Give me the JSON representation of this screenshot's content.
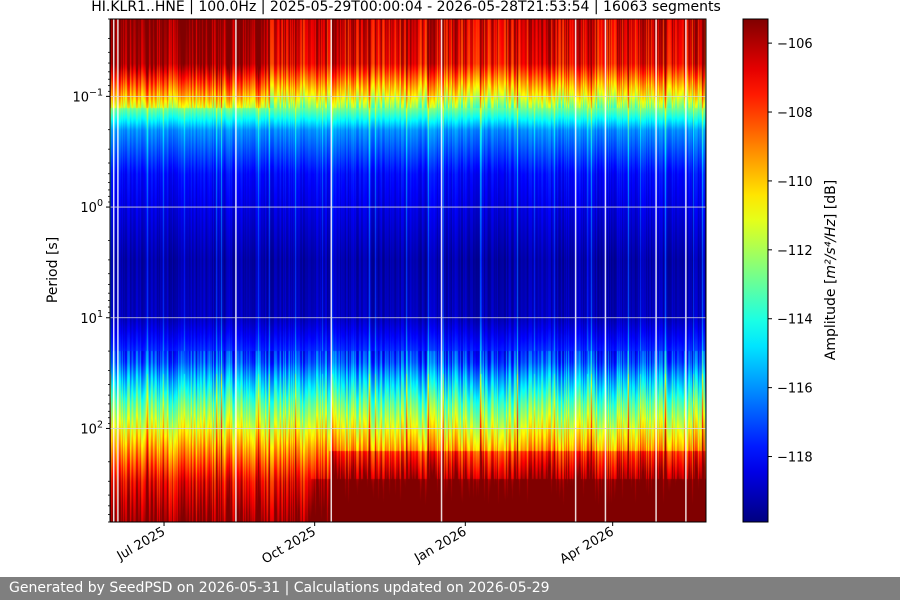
{
  "chart_data": {
    "type": "heatmap",
    "title": "HI.KLR1..HNE | 100.0Hz | 2025-05-29T00:00:04 - 2026-05-28T21:53:54 | 16063 segments",
    "ylabel": "Period [s]",
    "yscale": "log",
    "yaxis_inverted": true,
    "ylim": [
      0.02,
      700
    ],
    "xlim": [
      "2025-05-29",
      "2026-05-28"
    ],
    "x_tick_dates": [
      "2025-07-01",
      "2025-10-01",
      "2026-01-01",
      "2026-04-01"
    ],
    "x_tick_labels": [
      "Jul 2025",
      "Oct 2025",
      "Jan 2026",
      "Apr 2026"
    ],
    "y_ticks": [
      {
        "value": 0.1,
        "base": "10",
        "exp": "−1"
      },
      {
        "value": 1,
        "base": "10",
        "exp": "0"
      },
      {
        "value": 10,
        "base": "10",
        "exp": "1"
      },
      {
        "value": 100,
        "base": "10",
        "exp": "2"
      }
    ],
    "grid": true,
    "colorbar": {
      "label_prefix": "Amplitude [",
      "label_units": "m²/s⁴/Hz",
      "label_suffix": "] [dB]",
      "colormap": "jet",
      "vmin": -119.9,
      "vmax": -105.3,
      "ticks": [
        -106,
        -108,
        -110,
        -112,
        -114,
        -116,
        -118
      ],
      "tick_labels": [
        "−106",
        "−108",
        "−110",
        "−112",
        "−114",
        "−116",
        "−118"
      ]
    },
    "period_profile": [
      {
        "period": 0.02,
        "db": -106.5
      },
      {
        "period": 0.05,
        "db": -107
      },
      {
        "period": 0.1,
        "db": -111
      },
      {
        "period": 0.2,
        "db": -116
      },
      {
        "period": 0.5,
        "db": -118
      },
      {
        "period": 1,
        "db": -118.5
      },
      {
        "period": 3,
        "db": -119.3
      },
      {
        "period": 10,
        "db": -119
      },
      {
        "period": 25,
        "db": -117
      },
      {
        "period": 60,
        "db": -113
      },
      {
        "period": 150,
        "db": -109.5
      },
      {
        "period": 300,
        "db": -107
      },
      {
        "period": 700,
        "db": -105.5
      }
    ]
  },
  "footer": {
    "text": "Generated by SeedPSD on 2026-05-31 | Calculations updated on 2026-05-29"
  }
}
